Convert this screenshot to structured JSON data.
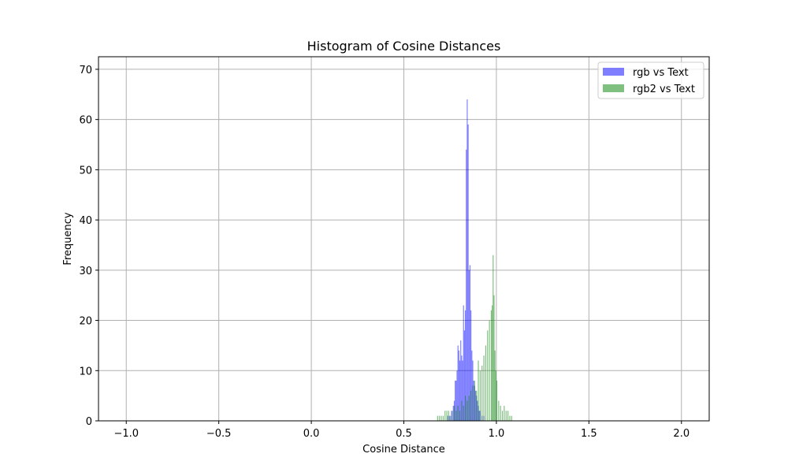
{
  "chart_data": {
    "type": "histogram",
    "title": "Histogram of Cosine Distances",
    "xlabel": "Cosine Distance",
    "ylabel": "Frequency",
    "xlim": [
      -1.15,
      2.15
    ],
    "ylim": [
      0,
      72.5
    ],
    "xticks": [
      -1.0,
      -0.5,
      0.0,
      0.5,
      1.0,
      1.5,
      2.0
    ],
    "xtick_labels": [
      "−1.0",
      "−0.5",
      "0.0",
      "0.5",
      "1.0",
      "1.5",
      "2.0"
    ],
    "yticks": [
      0,
      10,
      20,
      30,
      40,
      50,
      60,
      70
    ],
    "ytick_labels": [
      "0",
      "10",
      "20",
      "30",
      "40",
      "50",
      "60",
      "70"
    ],
    "grid": true,
    "legend_position": "top-right",
    "bin_width": 0.005,
    "series": [
      {
        "name": "rgb vs Text",
        "color": "#0000ff",
        "opacity": 0.5,
        "bins": [
          [
            0.735,
            1
          ],
          [
            0.745,
            1
          ],
          [
            0.755,
            2
          ],
          [
            0.765,
            3
          ],
          [
            0.77,
            4
          ],
          [
            0.775,
            8
          ],
          [
            0.78,
            8
          ],
          [
            0.785,
            10
          ],
          [
            0.79,
            15
          ],
          [
            0.795,
            14
          ],
          [
            0.8,
            12
          ],
          [
            0.805,
            16
          ],
          [
            0.81,
            13
          ],
          [
            0.815,
            12
          ],
          [
            0.82,
            23
          ],
          [
            0.825,
            18
          ],
          [
            0.83,
            22
          ],
          [
            0.835,
            54
          ],
          [
            0.84,
            64
          ],
          [
            0.845,
            59
          ],
          [
            0.85,
            30
          ],
          [
            0.855,
            31
          ],
          [
            0.86,
            22
          ],
          [
            0.865,
            14
          ],
          [
            0.87,
            12
          ],
          [
            0.875,
            8
          ],
          [
            0.88,
            7
          ],
          [
            0.885,
            6
          ],
          [
            0.89,
            5
          ],
          [
            0.895,
            4
          ],
          [
            0.9,
            3
          ],
          [
            0.905,
            2
          ],
          [
            0.91,
            2
          ],
          [
            0.92,
            1
          ],
          [
            0.93,
            1
          ]
        ]
      },
      {
        "name": "rgb2 vs Text",
        "color": "#008000",
        "opacity": 0.5,
        "bins": [
          [
            0.68,
            1
          ],
          [
            0.69,
            1
          ],
          [
            0.7,
            1
          ],
          [
            0.71,
            1
          ],
          [
            0.72,
            2
          ],
          [
            0.73,
            2
          ],
          [
            0.74,
            2
          ],
          [
            0.75,
            1
          ],
          [
            0.76,
            2
          ],
          [
            0.77,
            3
          ],
          [
            0.78,
            2
          ],
          [
            0.79,
            3
          ],
          [
            0.8,
            2
          ],
          [
            0.81,
            4
          ],
          [
            0.82,
            3
          ],
          [
            0.83,
            5
          ],
          [
            0.84,
            4
          ],
          [
            0.85,
            5
          ],
          [
            0.86,
            6
          ],
          [
            0.87,
            7
          ],
          [
            0.88,
            8
          ],
          [
            0.89,
            6
          ],
          [
            0.9,
            12
          ],
          [
            0.91,
            10
          ],
          [
            0.92,
            11
          ],
          [
            0.93,
            13
          ],
          [
            0.94,
            15
          ],
          [
            0.95,
            18
          ],
          [
            0.96,
            20
          ],
          [
            0.97,
            22
          ],
          [
            0.975,
            23
          ],
          [
            0.98,
            33
          ],
          [
            0.985,
            25
          ],
          [
            0.99,
            14
          ],
          [
            0.995,
            10
          ],
          [
            1.0,
            8
          ],
          [
            1.01,
            4
          ],
          [
            1.02,
            3
          ],
          [
            1.03,
            2
          ],
          [
            1.04,
            3
          ],
          [
            1.05,
            2
          ],
          [
            1.06,
            2
          ],
          [
            1.07,
            1
          ],
          [
            1.08,
            1
          ]
        ]
      }
    ]
  }
}
